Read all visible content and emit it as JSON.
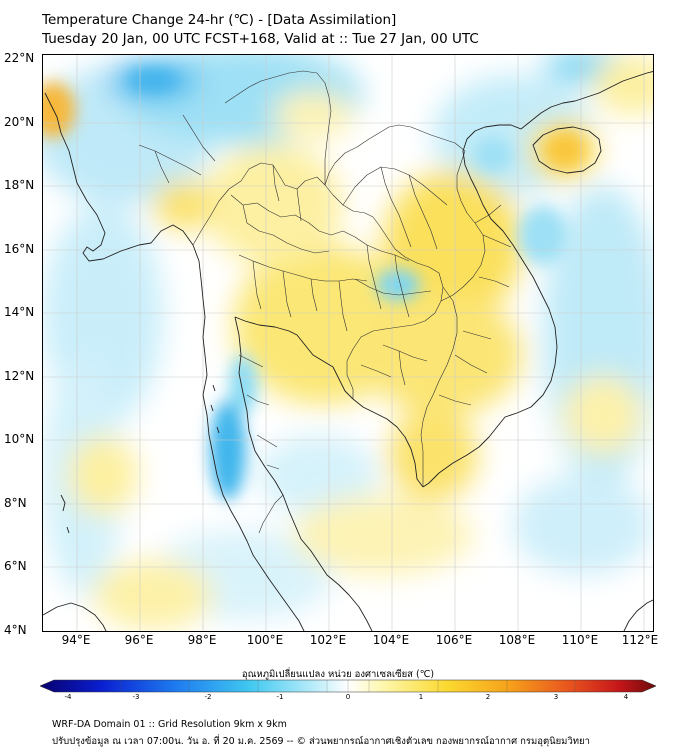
{
  "title_line1": "Temperature Change 24-hr (℃) - [Data Assimilation]",
  "title_line2": "Tuesday 20 Jan, 00 UTC FCST+168, Valid at :: Tue 27 Jan, 00 UTC",
  "lat_labels": [
    "22°N",
    "20°N",
    "18°N",
    "16°N",
    "14°N",
    "12°N",
    "10°N",
    "8°N",
    "6°N",
    "4°N"
  ],
  "lon_labels": [
    "94°E",
    "96°E",
    "98°E",
    "100°E",
    "102°E",
    "104°E",
    "106°E",
    "108°E",
    "110°E",
    "112°E"
  ],
  "colorbar": {
    "title": "อุณหภูมิเปลี่ยนแปลง หน่วย องศาเซลเซียส (℃)",
    "ticks": [
      "-4",
      "-3",
      "-2",
      "-1",
      "0",
      "1",
      "2",
      "3",
      "4"
    ],
    "range": [
      -4,
      4
    ],
    "colors": [
      "#08006e",
      "#0a1fd0",
      "#1e7bf0",
      "#40c8f0",
      "#bfeefa",
      "#ffffff",
      "#fdf6a8",
      "#fbd930",
      "#f6a21b",
      "#e8531e",
      "#c5161a",
      "#6e0a0a"
    ]
  },
  "footer_line1": "WRF-DA Domain 01 :: Grid Resolution 9km x 9km",
  "footer_line2": "ปรับปรุงข้อมูล ณ เวลา 07:00น. วัน อ. ที่ 20 ม.ค. 2569 -- © ส่วนพยากรณ์อากาศเชิงตัวเลข กองพยากรณ์อากาศ กรมอุตุนิยมวิทยา",
  "map_colors": {
    "neutral": "#ffffff",
    "light_yellow": "#fdf6b0",
    "yellow": "#fbe571",
    "orange": "#f9c63c",
    "light_cyan": "#c7eefa",
    "cyan": "#7fd8f3",
    "blue": "#3fb2ec",
    "coastline": "#222222",
    "border": "#333333",
    "gridline": "#cccccc"
  }
}
